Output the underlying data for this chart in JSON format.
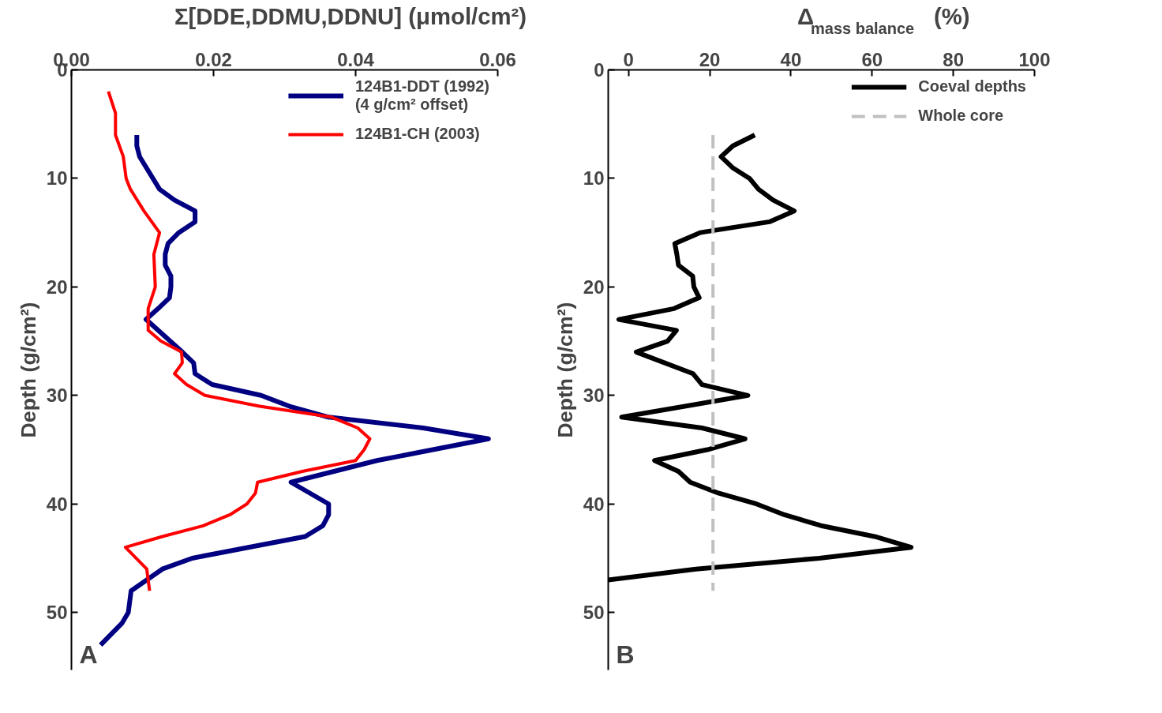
{
  "chart_data": [
    {
      "type": "line",
      "xlabel": "Σ[DDE,DDMU,DDNU] (μmol/cm²)",
      "ylabel": "Depth (g/cm²)",
      "xlim": [
        0,
        0.06
      ],
      "xticks": [
        {
          "value": 0,
          "label": "0.00"
        },
        {
          "value": 0.02,
          "label": "0.02"
        },
        {
          "value": 0.04,
          "label": "0.04"
        },
        {
          "value": 0.06,
          "label": "0.06"
        }
      ],
      "ylim": [
        55.3,
        0
      ],
      "yticks": [
        0,
        10,
        20,
        30,
        40,
        50
      ],
      "grid": false,
      "legend": "top right",
      "line_style": "solid",
      "marker": "none",
      "annotations": [
        "A"
      ],
      "series": [
        {
          "name": "124B1-DDT (1992)\n(4 g/cm² offset)",
          "color": "#000080",
          "x": [
            0.0092,
            0.0092,
            0.0096,
            0.0124,
            0.0145,
            0.0174,
            0.0174,
            0.0151,
            0.0136,
            0.0132,
            0.0132,
            0.014,
            0.014,
            0.0138,
            0.0122,
            0.0105,
            0.0156,
            0.0172,
            0.0174,
            0.0198,
            0.0267,
            0.0307,
            0.0362,
            0.0495,
            0.0587,
            0.043,
            0.0309,
            0.0362,
            0.0362,
            0.0354,
            0.0329,
            0.017,
            0.0128,
            0.0084,
            0.008,
            0.0071,
            0.0041
          ],
          "values": [
            6,
            7,
            8,
            11,
            12,
            13,
            14,
            15,
            16,
            17,
            18,
            19,
            20,
            21,
            22,
            23,
            26,
            27,
            28,
            29,
            30,
            31,
            32,
            33,
            34,
            36,
            38,
            40,
            41,
            42,
            43,
            45,
            46,
            48,
            50,
            51,
            53
          ]
        },
        {
          "name": "124B1-CH (2003)",
          "color": "#ff0000",
          "x": [
            0.0052,
            0.0062,
            0.0062,
            0.0073,
            0.0077,
            0.0083,
            0.0102,
            0.0124,
            0.0116,
            0.0118,
            0.0108,
            0.0108,
            0.0126,
            0.0155,
            0.0156,
            0.0145,
            0.0162,
            0.0188,
            0.0265,
            0.0366,
            0.0403,
            0.042,
            0.0412,
            0.04,
            0.0325,
            0.0262,
            0.0259,
            0.0247,
            0.0223,
            0.0186,
            0.0128,
            0.0076,
            0.0106,
            0.011
          ],
          "values": [
            2,
            4,
            6,
            8,
            10,
            11,
            13,
            15,
            17,
            20,
            22,
            24,
            25,
            26,
            27,
            28,
            29,
            30,
            31,
            32,
            33,
            34,
            35,
            36,
            37,
            38,
            39,
            40,
            41,
            42,
            43,
            44,
            46,
            48
          ]
        }
      ]
    },
    {
      "type": "line",
      "xlabel": "Δ$_{mass balance}$ (%)",
      "ylabel": "Depth (g/cm²)",
      "xlim": [
        -5,
        100
      ],
      "xticks": [
        0,
        20,
        40,
        60,
        80,
        100
      ],
      "ylim": [
        55.3,
        0
      ],
      "yticks": [
        0,
        10,
        20,
        30,
        40,
        50
      ],
      "grid": false,
      "legend": "top right",
      "marker": "none",
      "annotations": [
        "B"
      ],
      "series": [
        {
          "name": "Coeval depths",
          "color": "#000000",
          "line_style": "solid",
          "x": [
            31.1,
            25.7,
            22.8,
            25.6,
            29.8,
            32.0,
            35.6,
            40.8,
            34.7,
            17.6,
            11.4,
            11.9,
            12.3,
            15.8,
            16.1,
            17.4,
            11.2,
            -2.4,
            11.8,
            9.6,
            1.9,
            15.9,
            18.1,
            29.4,
            -1.7,
            18.1,
            28.7,
            19.4,
            6.4,
            12.3,
            15.2,
            22.1,
            31.5,
            38.4,
            47.4,
            60.6,
            69.6,
            47.0,
            16.6,
            -5
          ],
          "values": [
            6,
            7,
            8,
            9,
            10,
            11,
            12,
            13,
            14,
            15,
            16,
            17,
            18,
            19,
            20,
            21,
            22,
            23,
            24,
            25,
            26,
            28,
            29,
            30,
            32,
            33,
            34,
            35,
            36,
            37,
            38,
            39,
            40,
            41,
            42,
            43,
            44,
            45,
            46,
            47
          ]
        },
        {
          "name": "Whole core",
          "color": "#c0c0c0",
          "line_style": "dashed",
          "x": [
            20.8,
            20.8
          ],
          "values": [
            6,
            48
          ]
        }
      ]
    }
  ]
}
